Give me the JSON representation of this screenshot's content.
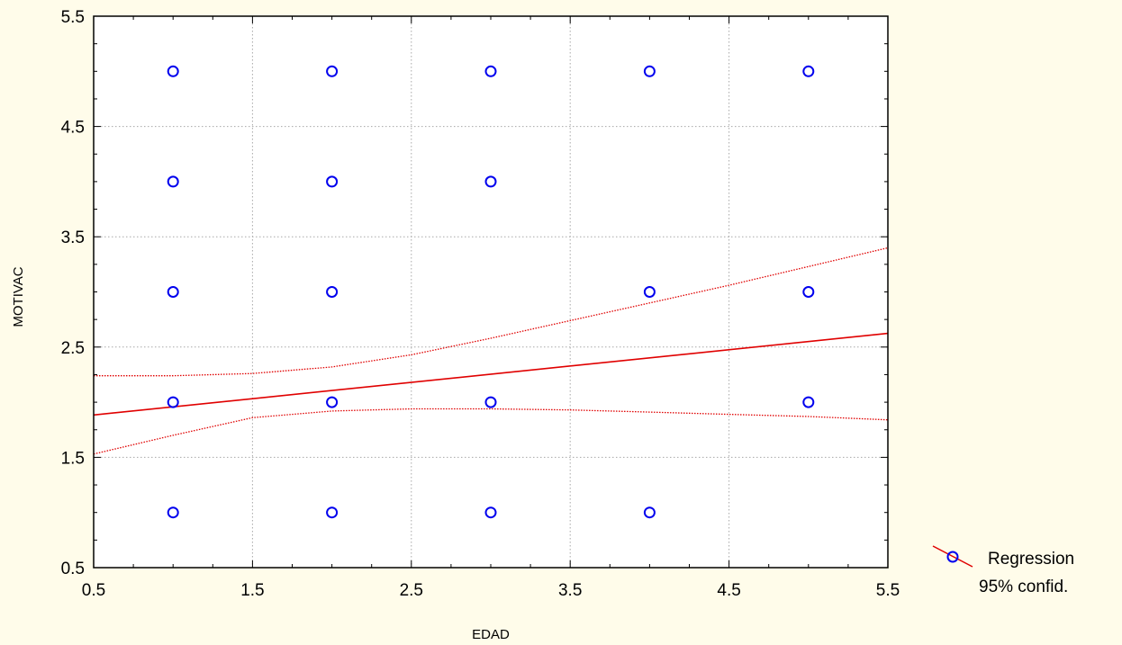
{
  "chart_data": {
    "type": "scatter",
    "xlabel": "EDAD",
    "ylabel": "MOTIVAC",
    "xlim": [
      0.5,
      5.5
    ],
    "ylim": [
      0.5,
      5.5
    ],
    "x_ticks": [
      "0.5",
      "1.5",
      "2.5",
      "3.5",
      "4.5",
      "5.5"
    ],
    "y_ticks": [
      "0.5",
      "1.5",
      "2.5",
      "3.5",
      "4.5",
      "5.5"
    ],
    "grid": true,
    "legend_position": "right-bottom",
    "colors": {
      "points": "#0000EE",
      "regression": "#E00000",
      "background": "#FFFCEA",
      "plot_area": "#FFFFFF"
    },
    "points": [
      {
        "x": 1,
        "y": 5
      },
      {
        "x": 2,
        "y": 5
      },
      {
        "x": 3,
        "y": 5
      },
      {
        "x": 4,
        "y": 5
      },
      {
        "x": 5,
        "y": 5
      },
      {
        "x": 1,
        "y": 4
      },
      {
        "x": 2,
        "y": 4
      },
      {
        "x": 3,
        "y": 4
      },
      {
        "x": 1,
        "y": 3
      },
      {
        "x": 2,
        "y": 3
      },
      {
        "x": 4,
        "y": 3
      },
      {
        "x": 5,
        "y": 3
      },
      {
        "x": 1,
        "y": 2
      },
      {
        "x": 2,
        "y": 2
      },
      {
        "x": 3,
        "y": 2
      },
      {
        "x": 5,
        "y": 2
      },
      {
        "x": 1,
        "y": 1
      },
      {
        "x": 2,
        "y": 1
      },
      {
        "x": 3,
        "y": 1
      },
      {
        "x": 4,
        "y": 1
      }
    ],
    "regression": {
      "intercept": 1.81,
      "slope": 0.148
    },
    "confidence_band": {
      "x": [
        0.5,
        1.0,
        1.5,
        2.0,
        2.5,
        3.0,
        3.5,
        4.0,
        4.5,
        5.0,
        5.5
      ],
      "upper": [
        2.24,
        2.24,
        2.26,
        2.32,
        2.43,
        2.58,
        2.74,
        2.9,
        3.06,
        3.23,
        3.4
      ],
      "lower": [
        1.53,
        1.7,
        1.86,
        1.92,
        1.94,
        1.94,
        1.93,
        1.91,
        1.89,
        1.87,
        1.84
      ]
    },
    "legend": [
      "Regression",
      "95% confid."
    ]
  }
}
